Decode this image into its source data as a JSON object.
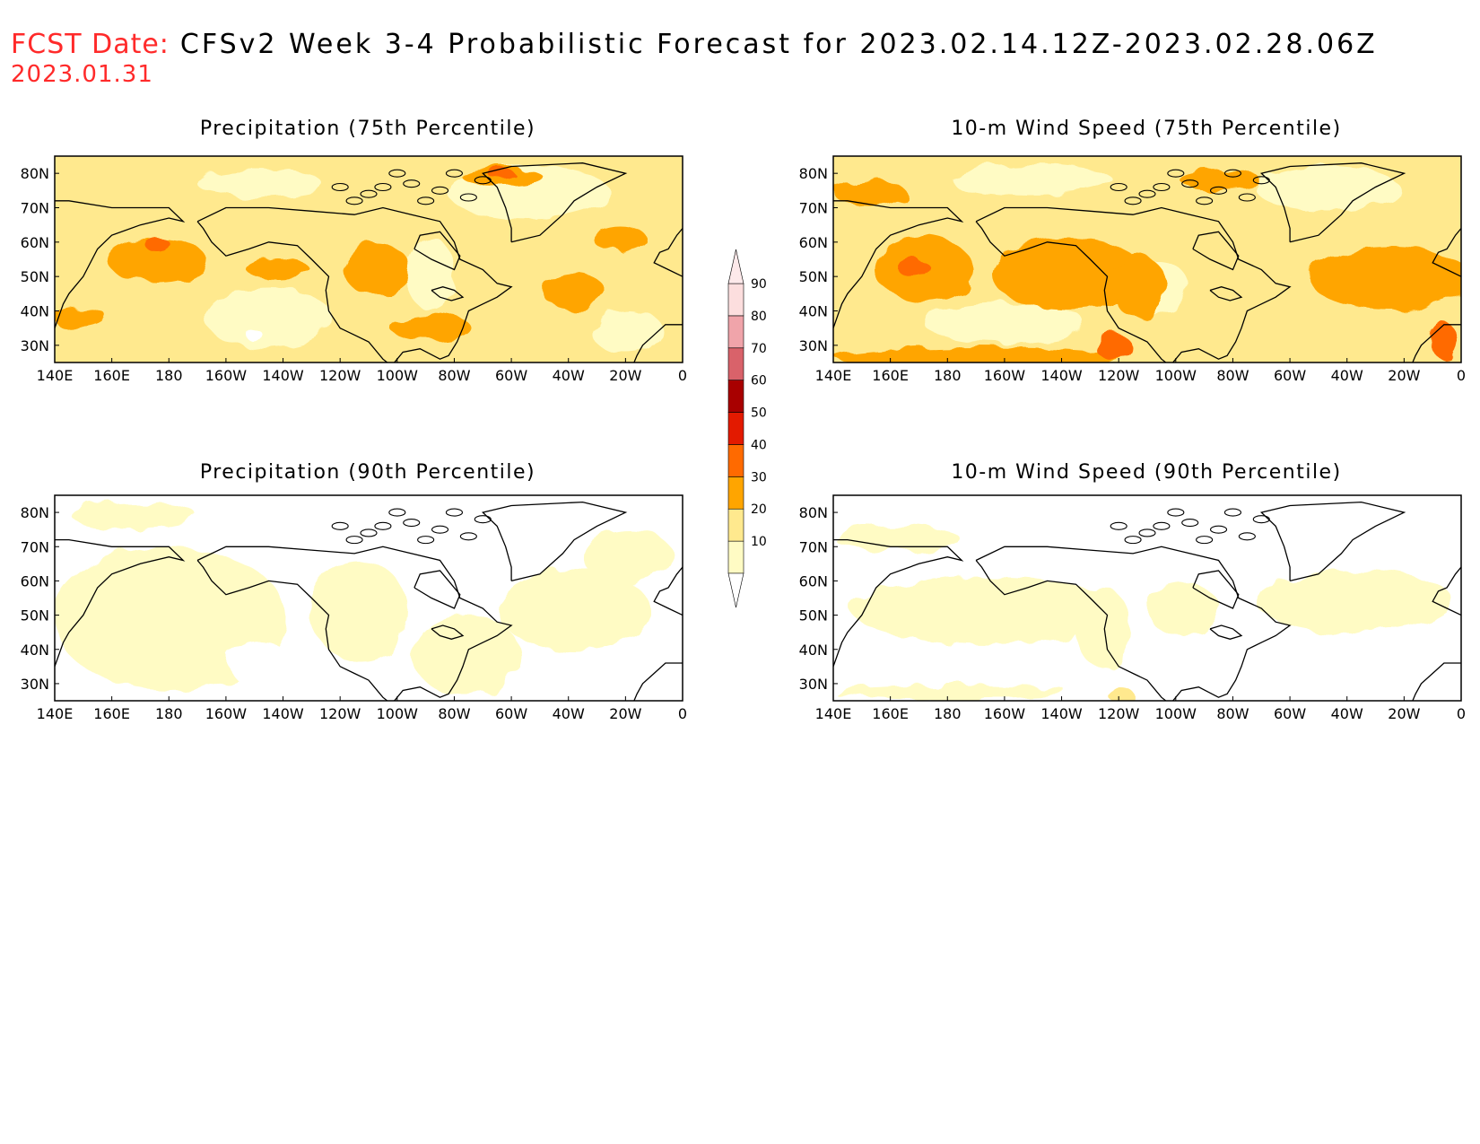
{
  "header": {
    "fcst_label": "FCST Date:",
    "title": "CFSv2 Week 3-4 Probabilistic Forecast for 2023.02.14.12Z-2023.02.28.06Z",
    "fcst_date": "2023.01.31"
  },
  "panels": [
    {
      "title": "Precipitation (75th Percentile)"
    },
    {
      "title": "10-m Wind Speed (75th Percentile)"
    },
    {
      "title": "Precipitation (90th Percentile)"
    },
    {
      "title": "10-m Wind Speed (90th Percentile)"
    }
  ],
  "axes": {
    "lat_labels": [
      "80N",
      "70N",
      "60N",
      "50N",
      "40N",
      "30N"
    ],
    "lon_labels": [
      "140E",
      "160E",
      "180",
      "160W",
      "140W",
      "120W",
      "100W",
      "80W",
      "60W",
      "40W",
      "20W",
      "0"
    ],
    "lat_range": [
      25,
      85
    ],
    "lon_range": [
      140,
      360
    ]
  },
  "colorbar": {
    "levels": [
      "10",
      "20",
      "30",
      "40",
      "50",
      "60",
      "70",
      "80",
      "90"
    ],
    "colors": [
      "#fffbc4",
      "#ffe98e",
      "#ffa500",
      "#ff6a00",
      "#e31a00",
      "#a80000",
      "#d9626a",
      "#f0a4aa",
      "#fcdede"
    ]
  }
}
